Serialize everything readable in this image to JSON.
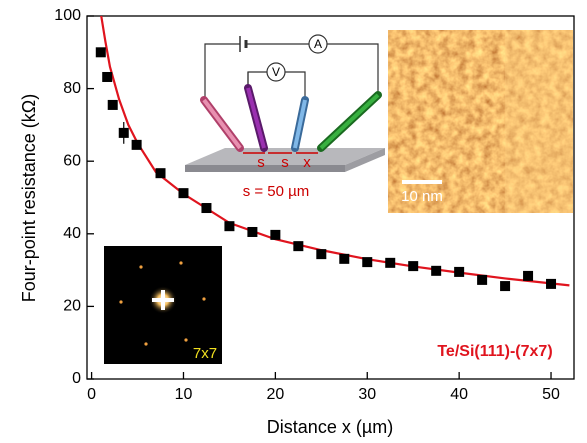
{
  "chart_data": {
    "type": "scatter",
    "xlabel": "Distance x (µm)",
    "ylabel": "Four-point resistance (kΩ)",
    "xlim": [
      -0.5,
      52.5
    ],
    "ylim": [
      0,
      100
    ],
    "xticks": [
      0,
      10,
      20,
      30,
      40,
      50
    ],
    "yticks": [
      0,
      20,
      40,
      60,
      80,
      100
    ],
    "color": "#000000",
    "x": [
      1.0,
      1.7,
      2.3,
      3.5,
      4.9,
      7.5,
      10,
      12.5,
      15,
      17.5,
      20,
      22.5,
      25,
      27.5,
      30,
      32.5,
      35,
      37.5,
      40,
      42.5,
      45,
      47.5,
      50
    ],
    "values": [
      90,
      83.2,
      75.5,
      67.8,
      64.5,
      56.7,
      51.2,
      47.1,
      42.1,
      40.5,
      39.7,
      36.6,
      34.4,
      33.1,
      32.2,
      32,
      31.1,
      29.8,
      29.5,
      27.3,
      25.6,
      28.4,
      26.2
    ],
    "errors": [
      null,
      null,
      null,
      3,
      null,
      null,
      null,
      null,
      null,
      null,
      null,
      null,
      null,
      null,
      null,
      null,
      null,
      null,
      null,
      null,
      null,
      null,
      null
    ],
    "fit": {
      "color": "#e0141e",
      "x": [
        1.05,
        1.5,
        2,
        3,
        4,
        5,
        7,
        10,
        15,
        20,
        25,
        30,
        35,
        40,
        45,
        52
      ],
      "values": [
        100,
        93,
        86,
        77,
        70,
        65,
        57,
        51,
        43,
        38.5,
        35.5,
        33,
        31,
        29.3,
        27.7,
        25.8
      ]
    },
    "annotations": {
      "sample": "Te/Si(111)-(7x7)",
      "ammeter": "A",
      "voltmeter": "V",
      "spacing_1": "s",
      "spacing_2": "s",
      "distance": "x",
      "caption": "s = 50 µm",
      "stm_scale": "10 nm",
      "fft_label": "7x7"
    }
  }
}
